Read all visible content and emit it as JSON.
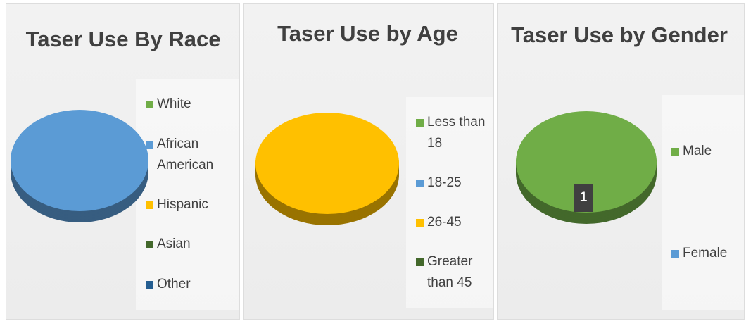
{
  "chart_data": [
    {
      "type": "pie",
      "title": "Taser Use By Race",
      "categories": [
        "White",
        "African American",
        "Hispanic",
        "Asian",
        "Other"
      ],
      "values": [
        0,
        1,
        0,
        0,
        0
      ],
      "colors": [
        "#70ad47",
        "#5b9bd5",
        "#ffc000",
        "#43682b",
        "#255e91"
      ]
    },
    {
      "type": "pie",
      "title": "Taser Use by Age",
      "categories": [
        "Less than 18",
        "18-25",
        "26-45",
        "Greater than 45"
      ],
      "values": [
        0,
        0,
        1,
        0
      ],
      "colors": [
        "#70ad47",
        "#5b9bd5",
        "#ffc000",
        "#43682b"
      ]
    },
    {
      "type": "pie",
      "title": "Taser Use by Gender",
      "categories": [
        "Male",
        "Female"
      ],
      "values": [
        1,
        0
      ],
      "colors": [
        "#70ad47",
        "#5b9bd5"
      ]
    }
  ]
}
